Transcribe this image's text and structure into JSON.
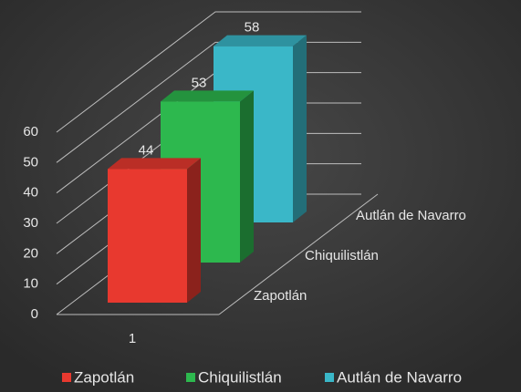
{
  "chart_data": {
    "type": "bar3d",
    "categories": [
      "1"
    ],
    "series": [
      {
        "name": "Zapotlán",
        "color": "#e8392f",
        "values": [
          44
        ]
      },
      {
        "name": "Chiquilistlán",
        "color": "#2db84e",
        "values": [
          53
        ]
      },
      {
        "name": "Autlán de Navarro",
        "color": "#3ab7c8",
        "values": [
          58
        ]
      }
    ],
    "ylim": [
      0,
      60
    ],
    "yticks": [
      0,
      10,
      20,
      30,
      40,
      50,
      60
    ],
    "grid": true,
    "legend": "bottom"
  }
}
